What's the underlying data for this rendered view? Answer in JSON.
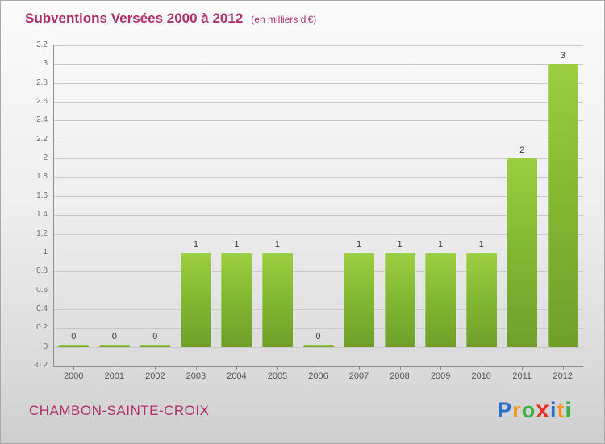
{
  "header": {
    "title": "Subventions Versées 2000 à 2012",
    "subtitle": "(en milliers d'€)"
  },
  "footer": {
    "name": "CHAMBON-SAINTE-CROIX",
    "logo": {
      "letters": [
        {
          "ch": "P",
          "color": "#2b6fc9"
        },
        {
          "ch": "r",
          "color": "#f7941d"
        },
        {
          "ch": "o",
          "color": "#3fae49"
        },
        {
          "ch": "x",
          "color": "#e8312a"
        },
        {
          "ch": "i",
          "color": "#2b6fc9"
        },
        {
          "ch": "t",
          "color": "#f7941d"
        },
        {
          "ch": "i",
          "color": "#3fae49"
        }
      ]
    }
  },
  "chart_data": {
    "type": "bar",
    "title": "Subventions Versées 2000 à 2012",
    "subtitle": "(en milliers d'€)",
    "categories": [
      "2000",
      "2001",
      "2002",
      "2003",
      "2004",
      "2005",
      "2006",
      "2007",
      "2008",
      "2009",
      "2010",
      "2011",
      "2012"
    ],
    "values": [
      0,
      0,
      0,
      1,
      1,
      1,
      0,
      1,
      1,
      1,
      1,
      2,
      3
    ],
    "value_labels": [
      "0",
      "0",
      "0",
      "1",
      "1",
      "1",
      "0",
      "1",
      "1",
      "1",
      "1",
      "2",
      "3"
    ],
    "ylim": [
      -0.2,
      3.2
    ],
    "ytick_labels": [
      "-0.2",
      "0",
      "0.2",
      "0.4",
      "0.6",
      "0.8",
      "1",
      "1.2",
      "1.4",
      "1.6",
      "1.8",
      "2",
      "2.2",
      "2.4",
      "2.6",
      "2.8",
      "3",
      "3.2"
    ],
    "grid": true,
    "legend": false,
    "bar_color_top": "#9cce41",
    "bar_color_bottom": "#6f9f2a",
    "xlabel": "",
    "ylabel": ""
  }
}
